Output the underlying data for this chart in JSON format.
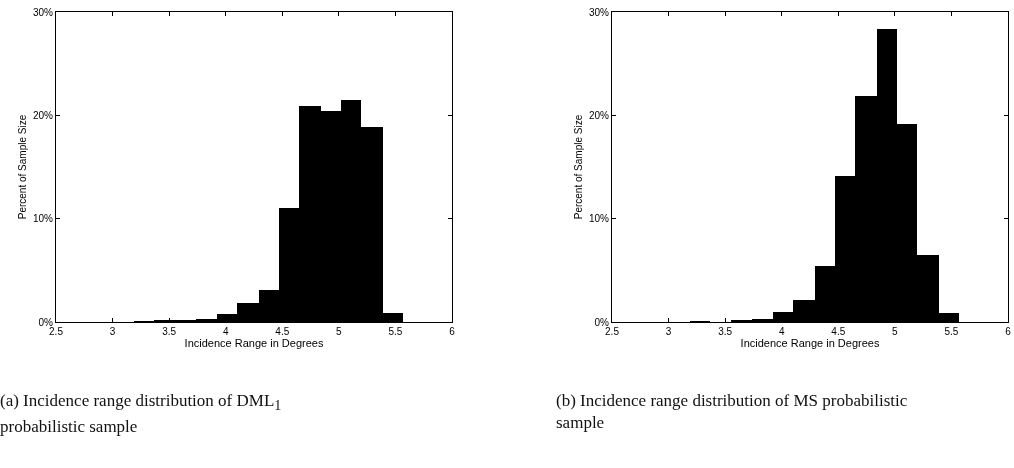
{
  "chart_data": [
    {
      "type": "histogram",
      "xlabel": "Incidence Range in Degrees",
      "ylabel": "Percent of Sample Size",
      "color": "#000000",
      "bins": [
        3.19,
        3.37,
        3.55,
        3.74,
        3.92,
        4.1,
        4.29,
        4.47,
        4.65,
        4.84,
        5.02,
        5.2,
        5.39,
        5.57
      ],
      "values": [
        0.1,
        0.2,
        0.2,
        0.3,
        0.8,
        1.8,
        3.1,
        11.0,
        20.9,
        20.4,
        21.5,
        18.9,
        0.9
      ],
      "xlim": [
        2.5,
        6
      ],
      "xticks": [
        2.5,
        3,
        3.5,
        4,
        4.5,
        5,
        5.5,
        6
      ],
      "ylim": [
        0,
        30
      ],
      "yticks": [
        {
          "value": 0,
          "label": "0%"
        },
        {
          "value": 10,
          "label": "10%"
        },
        {
          "value": 20,
          "label": "20%"
        },
        {
          "value": 30,
          "label": "30%"
        }
      ],
      "grid": false,
      "legend": false,
      "annotations": [
        "(a) Incidence range distribution of DML$_{1}$ probabilistic sample"
      ]
    },
    {
      "type": "histogram",
      "xlabel": "Incidence Range in Degrees",
      "ylabel": "Percent of Sample Size",
      "color": "#000000",
      "bins": [
        3.19,
        3.37,
        3.55,
        3.74,
        3.92,
        4.1,
        4.29,
        4.47,
        4.65,
        4.84,
        5.02,
        5.2,
        5.39,
        5.57
      ],
      "values": [
        0.1,
        0,
        0.2,
        0.3,
        1.0,
        2.1,
        5.4,
        14.1,
        21.9,
        28.4,
        19.2,
        6.5,
        0.9
      ],
      "xlim": [
        2.5,
        6
      ],
      "xticks": [
        2.5,
        3,
        3.5,
        4,
        4.5,
        5,
        5.5,
        6
      ],
      "ylim": [
        0,
        30
      ],
      "yticks": [
        {
          "value": 0,
          "label": "0%"
        },
        {
          "value": 10,
          "label": "10%"
        },
        {
          "value": 20,
          "label": "20%"
        },
        {
          "value": 30,
          "label": "30%"
        }
      ],
      "grid": false,
      "legend": false,
      "annotations": [
        "(b) Incidence range distribution of MS probabilistic sample"
      ]
    }
  ]
}
